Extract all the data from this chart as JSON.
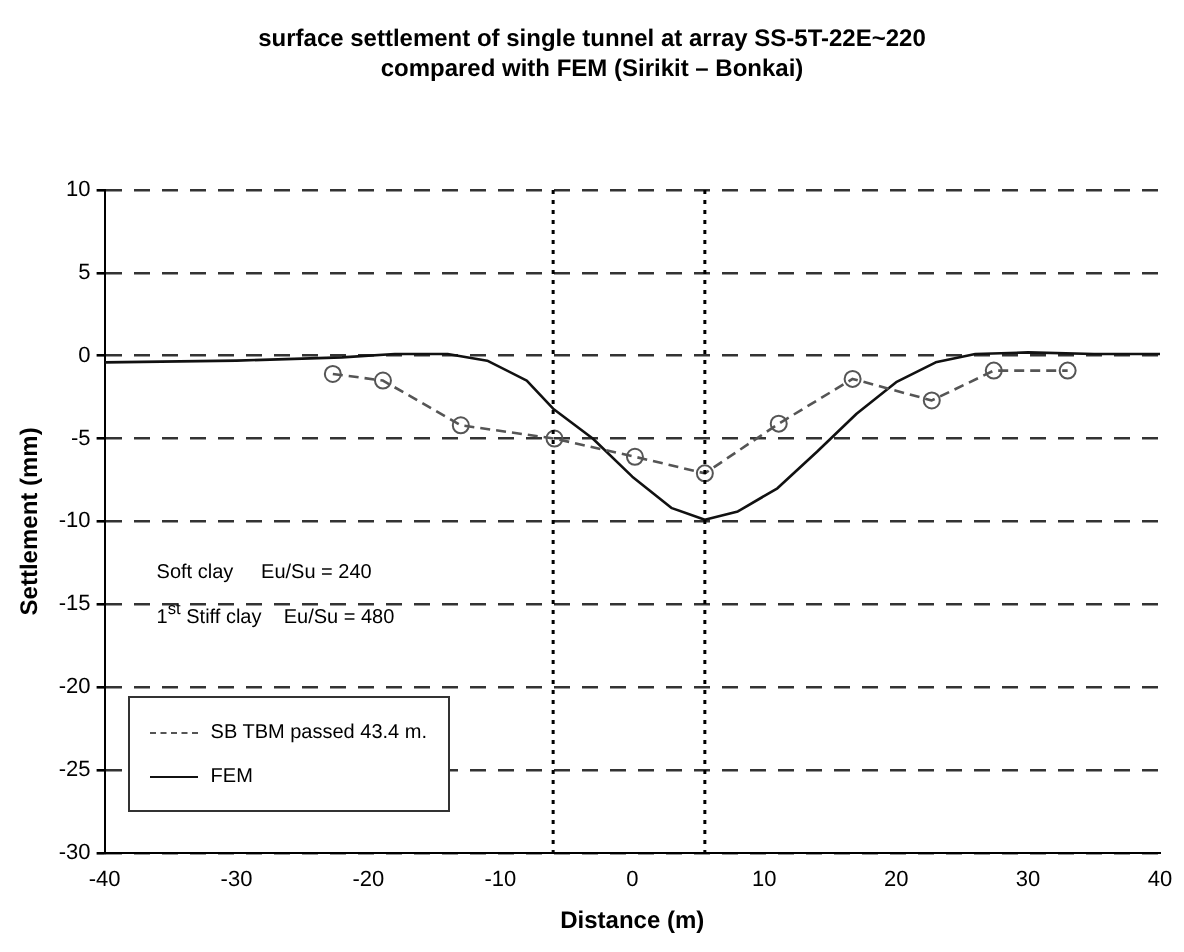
{
  "chart_data": {
    "type": "line",
    "title": "surface settlement of single tunnel at array SS-5T-22E~220 compared with FEM (Sirikit – Bonkai)",
    "xlabel": "Distance (m)",
    "ylabel": "Settlement (mm)",
    "xlim": [
      -40,
      40
    ],
    "xticks": [
      -40,
      -30,
      -20,
      -10,
      0,
      10,
      20,
      30,
      40
    ],
    "ylim": [
      -30,
      10
    ],
    "yticks": [
      -30,
      -25,
      -20,
      -15,
      -10,
      -5,
      0,
      5,
      10
    ],
    "grid": "y",
    "legend": "bottom left",
    "annotations": [
      "Soft clay     Eu/Su = 240",
      "1$^{st}$ Stiff clay    Eu/Su = 480"
    ],
    "ref_lines": [
      {
        "axis": "x",
        "value": -6,
        "line_style": "dotted",
        "color": "#000000"
      },
      {
        "axis": "x",
        "value": 5.5,
        "line_style": "dotted",
        "color": "#000000"
      }
    ],
    "series": [
      {
        "name": "SB TBM passed 43.4 m.",
        "color": "#555555",
        "marker": "circle",
        "line_style": "dashed",
        "x": [
          -22.7,
          -18.9,
          -13.0,
          -5.9,
          0.2,
          5.5,
          11.1,
          16.7,
          22.7,
          27.4,
          33.0
        ],
        "values": [
          -1.1,
          -1.5,
          -4.2,
          -5.0,
          -6.1,
          -7.1,
          -4.1,
          -1.4,
          -2.7,
          -0.9,
          -0.9
        ]
      },
      {
        "name": "FEM",
        "color": "#111111",
        "marker": "none",
        "line_style": "solid",
        "x": [
          -40,
          -30,
          -22,
          -18,
          -14,
          -11,
          -8,
          -6,
          -3,
          0,
          3,
          5.5,
          8,
          11,
          14,
          17,
          20,
          23,
          26,
          30,
          35,
          40
        ],
        "values": [
          -0.4,
          -0.3,
          -0.1,
          0.1,
          0.1,
          -0.3,
          -1.5,
          -3.2,
          -5.0,
          -7.3,
          -9.2,
          -9.9,
          -9.4,
          -8.0,
          -5.8,
          -3.5,
          -1.6,
          -0.4,
          0.1,
          0.2,
          0.1,
          0.1
        ]
      }
    ]
  }
}
